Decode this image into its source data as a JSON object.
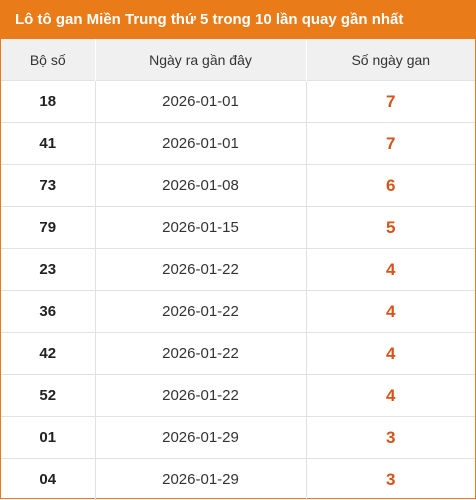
{
  "title": "Lô tô gan Miền Trung thứ 5 trong 10 lần quay gần nhất",
  "columns": {
    "number": "Bộ số",
    "last_date": "Ngày ra gần đây",
    "gan_days": "Số ngày gan"
  },
  "accent_color": "#e97b19",
  "gan_value_color": "#d4541a",
  "rows": [
    {
      "number": "18",
      "last_date": "2026-01-01",
      "gan_days": "7"
    },
    {
      "number": "41",
      "last_date": "2026-01-01",
      "gan_days": "7"
    },
    {
      "number": "73",
      "last_date": "2026-01-08",
      "gan_days": "6"
    },
    {
      "number": "79",
      "last_date": "2026-01-15",
      "gan_days": "5"
    },
    {
      "number": "23",
      "last_date": "2026-01-22",
      "gan_days": "4"
    },
    {
      "number": "36",
      "last_date": "2026-01-22",
      "gan_days": "4"
    },
    {
      "number": "42",
      "last_date": "2026-01-22",
      "gan_days": "4"
    },
    {
      "number": "52",
      "last_date": "2026-01-22",
      "gan_days": "4"
    },
    {
      "number": "01",
      "last_date": "2026-01-29",
      "gan_days": "3"
    },
    {
      "number": "04",
      "last_date": "2026-01-29",
      "gan_days": "3"
    }
  ]
}
